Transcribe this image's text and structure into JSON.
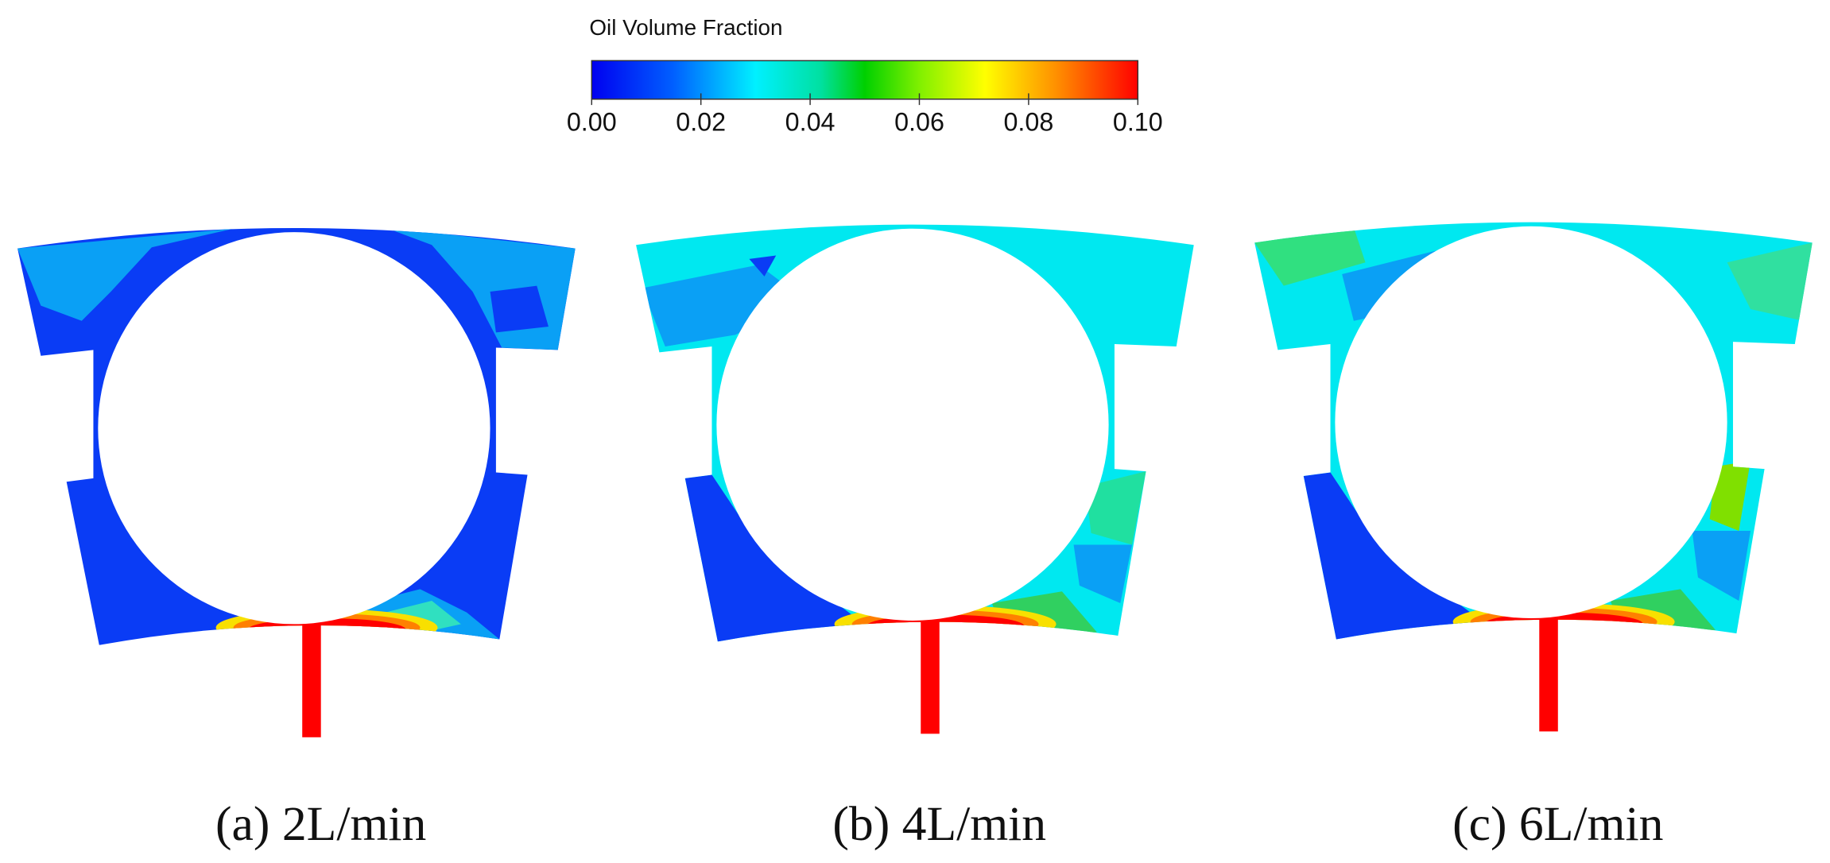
{
  "colorbar": {
    "title": "Oil Volume Fraction",
    "lim": [
      0,
      0.1
    ],
    "ticks": [
      {
        "value": 0,
        "label": "0.00"
      },
      {
        "value": 0.02,
        "label": "0.02"
      },
      {
        "value": 0.04,
        "label": "0.04"
      },
      {
        "value": 0.06,
        "label": "0.06"
      },
      {
        "value": 0.08,
        "label": "0.08"
      },
      {
        "value": 0.1,
        "label": "0.10"
      }
    ]
  },
  "panels": [
    {
      "caption": "(a) 2L/min"
    },
    {
      "caption": "(b) 4L/min"
    },
    {
      "caption": "(c) 6L/min"
    }
  ]
}
